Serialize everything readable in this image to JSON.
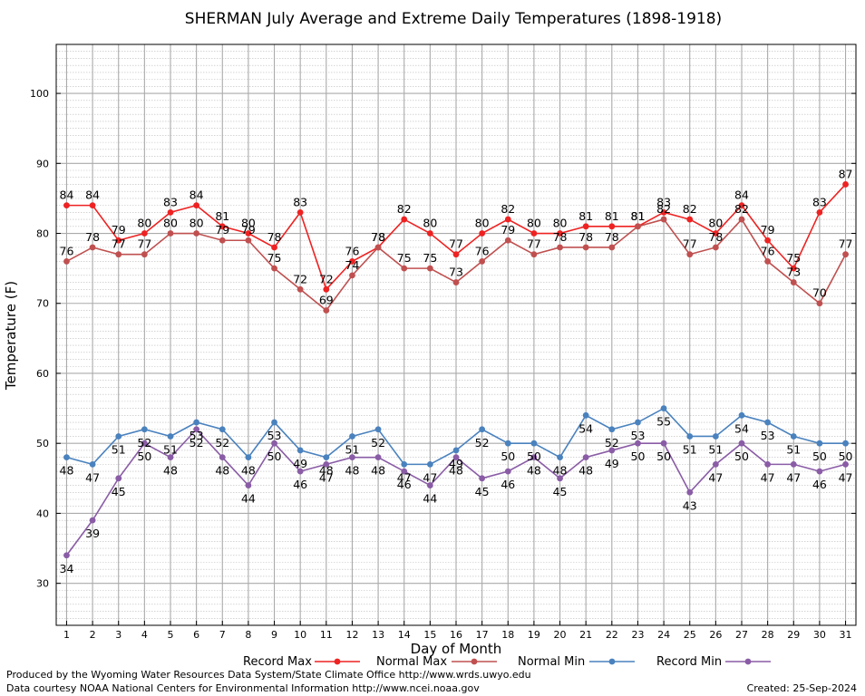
{
  "chart_data": {
    "type": "line",
    "title": "SHERMAN July Average and Extreme Daily Temperatures (1898-1918)",
    "xlabel": "Day of Month",
    "ylabel": "Temperature (F)",
    "ylim": [
      24,
      107
    ],
    "xlim": [
      0.6,
      31.4
    ],
    "yticks": [
      30,
      40,
      50,
      60,
      70,
      80,
      90,
      100
    ],
    "grid": true,
    "x": [
      1,
      2,
      3,
      4,
      5,
      6,
      7,
      8,
      9,
      10,
      11,
      12,
      13,
      14,
      15,
      16,
      17,
      18,
      19,
      20,
      21,
      22,
      23,
      24,
      25,
      26,
      27,
      28,
      29,
      30,
      31
    ],
    "series": [
      {
        "name": "Record Max",
        "color": "#ee2222",
        "values": [
          84,
          84,
          79,
          80,
          83,
          84,
          81,
          80,
          78,
          83,
          72,
          76,
          78,
          82,
          80,
          77,
          80,
          82,
          80,
          80,
          81,
          81,
          81,
          83,
          82,
          80,
          84,
          79,
          75,
          83,
          87
        ]
      },
      {
        "name": "Normal Max",
        "color": "#c05050",
        "values": [
          76,
          78,
          77,
          77,
          80,
          80,
          79,
          79,
          75,
          72,
          69,
          74,
          78,
          75,
          75,
          73,
          76,
          79,
          77,
          78,
          78,
          78,
          81,
          82,
          77,
          78,
          82,
          76,
          73,
          70,
          77
        ]
      },
      {
        "name": "Normal Min",
        "color": "#4a82be",
        "values": [
          48,
          47,
          51,
          52,
          51,
          53,
          52,
          48,
          53,
          49,
          48,
          51,
          52,
          47,
          47,
          49,
          52,
          50,
          50,
          48,
          54,
          52,
          53,
          55,
          51,
          51,
          54,
          53,
          51,
          50,
          50
        ]
      },
      {
        "name": "Record Min",
        "color": "#8a5ca6",
        "values": [
          34,
          39,
          45,
          50,
          48,
          52,
          48,
          44,
          50,
          46,
          47,
          48,
          48,
          46,
          44,
          48,
          45,
          46,
          48,
          45,
          48,
          49,
          50,
          50,
          43,
          47,
          50,
          47,
          47,
          46,
          47
        ]
      }
    ]
  },
  "footer": {
    "left_line1": "Produced by the Wyoming Water Resources Data System/State Climate Office http://www.wrds.uwyo.edu",
    "left_line2": "Data courtesy NOAA National Centers for Environmental Information http://www.ncei.noaa.gov",
    "created": "Created:  25-Sep-2024"
  }
}
